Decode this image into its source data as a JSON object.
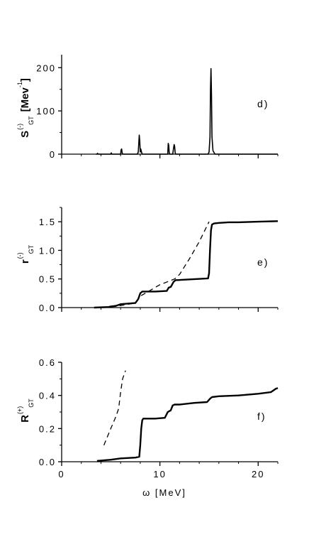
{
  "chart_data": [
    {
      "type": "line",
      "panel_label": "d)",
      "ylabel": {
        "main": "S",
        "sup": "(-)",
        "sub": "GT",
        "unit": "[Mev",
        "unit_sup": "-1",
        "unit_close": "]"
      },
      "xlim": [
        0,
        22
      ],
      "ylim": [
        0,
        230
      ],
      "yticks": [
        0,
        100,
        200
      ],
      "ytick_labels": [
        "0",
        "100",
        "200"
      ],
      "xticks": [
        0,
        10,
        20
      ],
      "show_xtick_labels": false,
      "series": [
        {
          "style": "solid",
          "x": [
            3.5,
            3.6,
            3.65,
            3.7,
            5.0,
            5.05,
            5.1,
            5.3,
            6.0,
            6.05,
            6.1,
            6.15,
            6.2,
            7.7,
            7.8,
            7.9,
            7.95,
            8.0,
            8.05,
            8.15,
            8.2,
            8.25,
            8.3,
            10.8,
            10.85,
            10.9,
            10.95,
            11.0,
            11.3,
            11.4,
            11.45,
            11.5,
            11.55,
            11.6,
            14.9,
            15.0,
            15.1,
            15.15,
            15.2,
            15.25,
            15.3,
            15.4,
            15.6,
            22
          ],
          "y": [
            0,
            0,
            2,
            0,
            0,
            3,
            0,
            0,
            0,
            10,
            12,
            4,
            0,
            0,
            5,
            44,
            30,
            5,
            12,
            3,
            0,
            0,
            0,
            0,
            25,
            20,
            3,
            0,
            0,
            15,
            22,
            18,
            4,
            0,
            0,
            5,
            40,
            150,
            198,
            140,
            40,
            8,
            0,
            0
          ]
        }
      ]
    },
    {
      "type": "line",
      "panel_label": "e)",
      "ylabel": {
        "main": "r",
        "sup": "(-)",
        "sub": "GT"
      },
      "xlim": [
        0,
        22
      ],
      "ylim": [
        0,
        1.75
      ],
      "yticks": [
        0.0,
        0.5,
        1.0,
        1.5
      ],
      "ytick_labels": [
        "0.0",
        "0.5",
        "1.0",
        "1.5"
      ],
      "xticks": [
        0,
        10,
        20
      ],
      "show_xtick_labels": false,
      "series": [
        {
          "style": "solid",
          "x": [
            3.3,
            4.8,
            5.0,
            5.5,
            6.0,
            7.5,
            7.8,
            8.0,
            8.2,
            9.5,
            10.7,
            10.9,
            11.1,
            11.4,
            11.6,
            11.8,
            14.9,
            15.0,
            15.1,
            15.2,
            15.3,
            15.5,
            16.0,
            17.0,
            18.0,
            20.0,
            22.0
          ],
          "y": [
            0.0,
            0.01,
            0.02,
            0.03,
            0.06,
            0.08,
            0.15,
            0.25,
            0.28,
            0.28,
            0.29,
            0.35,
            0.36,
            0.45,
            0.48,
            0.48,
            0.51,
            0.6,
            1.0,
            1.35,
            1.45,
            1.47,
            1.48,
            1.49,
            1.49,
            1.5,
            1.51
          ]
        },
        {
          "style": "dashed",
          "x": [
            3.3,
            5.5,
            7.5,
            8.0,
            10.0,
            11.5,
            12.0,
            13.0,
            14.0,
            15.0
          ],
          "y": [
            0.0,
            0.02,
            0.08,
            0.2,
            0.4,
            0.5,
            0.58,
            0.85,
            1.15,
            1.5
          ]
        }
      ]
    },
    {
      "type": "line",
      "panel_label": "f)",
      "ylabel": {
        "main": "R",
        "sup": "(+)",
        "sub": "GT"
      },
      "xlabel": "ω [MeV]",
      "xlim": [
        0,
        22
      ],
      "ylim": [
        0,
        0.6
      ],
      "yticks": [
        0.0,
        0.2,
        0.4,
        0.6
      ],
      "ytick_labels": [
        "0.0",
        "0.2",
        "0.4",
        "0.6"
      ],
      "xticks": [
        0,
        10,
        20
      ],
      "xtick_labels": [
        "0",
        "10",
        "20"
      ],
      "show_xtick_labels": true,
      "series": [
        {
          "style": "solid",
          "x": [
            3.6,
            5.0,
            6.0,
            7.5,
            7.9,
            8.0,
            8.1,
            8.2,
            8.3,
            9.5,
            10.5,
            10.8,
            11.1,
            11.3,
            11.5,
            12.0,
            13.5,
            14.8,
            15.1,
            15.3,
            16.0,
            18.0,
            20.0,
            21.3,
            21.8,
            22.0
          ],
          "y": [
            0.005,
            0.012,
            0.02,
            0.025,
            0.03,
            0.1,
            0.2,
            0.25,
            0.26,
            0.26,
            0.265,
            0.3,
            0.31,
            0.34,
            0.345,
            0.345,
            0.355,
            0.36,
            0.38,
            0.39,
            0.395,
            0.4,
            0.41,
            0.42,
            0.44,
            0.445
          ]
        },
        {
          "style": "dashed",
          "x": [
            4.3,
            5.0,
            5.5,
            5.8,
            6.0,
            6.2,
            6.5
          ],
          "y": [
            0.1,
            0.2,
            0.27,
            0.32,
            0.42,
            0.5,
            0.55
          ]
        }
      ]
    }
  ]
}
